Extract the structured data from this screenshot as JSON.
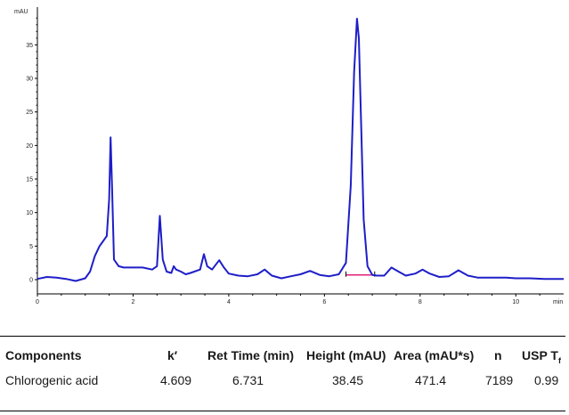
{
  "chart_data": {
    "type": "line",
    "ylabel": "mAU",
    "xlabel": "min",
    "xlim": [
      0,
      11
    ],
    "ylim": [
      -1,
      40
    ],
    "x_ticks": [
      0,
      2,
      4,
      6,
      8,
      10
    ],
    "y_ticks": [
      0,
      5,
      10,
      15,
      20,
      25,
      30,
      35
    ],
    "series": [
      {
        "color": "#1e1ec8",
        "x": [
          0,
          0.2,
          0.4,
          0.6,
          0.8,
          1.0,
          1.1,
          1.2,
          1.3,
          1.35,
          1.4,
          1.45,
          1.5,
          1.53,
          1.56,
          1.6,
          1.7,
          1.8,
          2.0,
          2.2,
          2.4,
          2.5,
          2.56,
          2.62,
          2.7,
          2.8,
          2.85,
          2.9,
          3.0,
          3.1,
          3.2,
          3.4,
          3.48,
          3.55,
          3.65,
          3.8,
          3.9,
          4.0,
          4.2,
          4.4,
          4.6,
          4.75,
          4.9,
          5.1,
          5.3,
          5.5,
          5.7,
          5.9,
          6.1,
          6.3,
          6.45,
          6.55,
          6.62,
          6.68,
          6.72,
          6.76,
          6.82,
          6.9,
          7.0,
          7.1,
          7.25,
          7.4,
          7.55,
          7.7,
          7.9,
          8.05,
          8.2,
          8.4,
          8.6,
          8.8,
          9.0,
          9.2,
          9.5,
          9.8,
          10.0,
          10.3,
          10.6,
          11.0
        ],
        "y": [
          0.1,
          0.4,
          0.3,
          0.1,
          -0.2,
          0.2,
          1.2,
          3.5,
          5.0,
          5.5,
          6.0,
          6.5,
          12.0,
          21.2,
          14.0,
          3.0,
          2.0,
          1.8,
          1.8,
          1.8,
          1.5,
          2.0,
          9.5,
          3.0,
          1.2,
          1.0,
          2.0,
          1.5,
          1.2,
          0.8,
          1.0,
          1.5,
          3.8,
          2.0,
          1.5,
          2.9,
          1.8,
          0.9,
          0.6,
          0.5,
          0.8,
          1.5,
          0.6,
          0.2,
          0.5,
          0.8,
          1.3,
          0.7,
          0.5,
          0.8,
          2.5,
          14.0,
          31.0,
          38.9,
          36.0,
          25.0,
          9.0,
          2.0,
          0.7,
          0.6,
          0.6,
          1.8,
          1.2,
          0.6,
          0.9,
          1.5,
          0.9,
          0.4,
          0.5,
          1.4,
          0.6,
          0.3,
          0.3,
          0.3,
          0.2,
          0.2,
          0.1,
          0.1
        ]
      }
    ],
    "baseline": {
      "color": "#e0207a",
      "x": [
        6.45,
        7.05
      ],
      "y": [
        0.7,
        0.7
      ]
    }
  },
  "table": {
    "headers": [
      "Components",
      "k′",
      "Ret Time (min)",
      "Height (mAU)",
      "Area (mAU*s)",
      "n",
      "USP T"
    ],
    "usp_subscript": "f",
    "rows": [
      [
        "Chlorogenic acid",
        "4.609",
        "6.731",
        "38.45",
        "471.4",
        "7189",
        "0.99"
      ]
    ]
  }
}
